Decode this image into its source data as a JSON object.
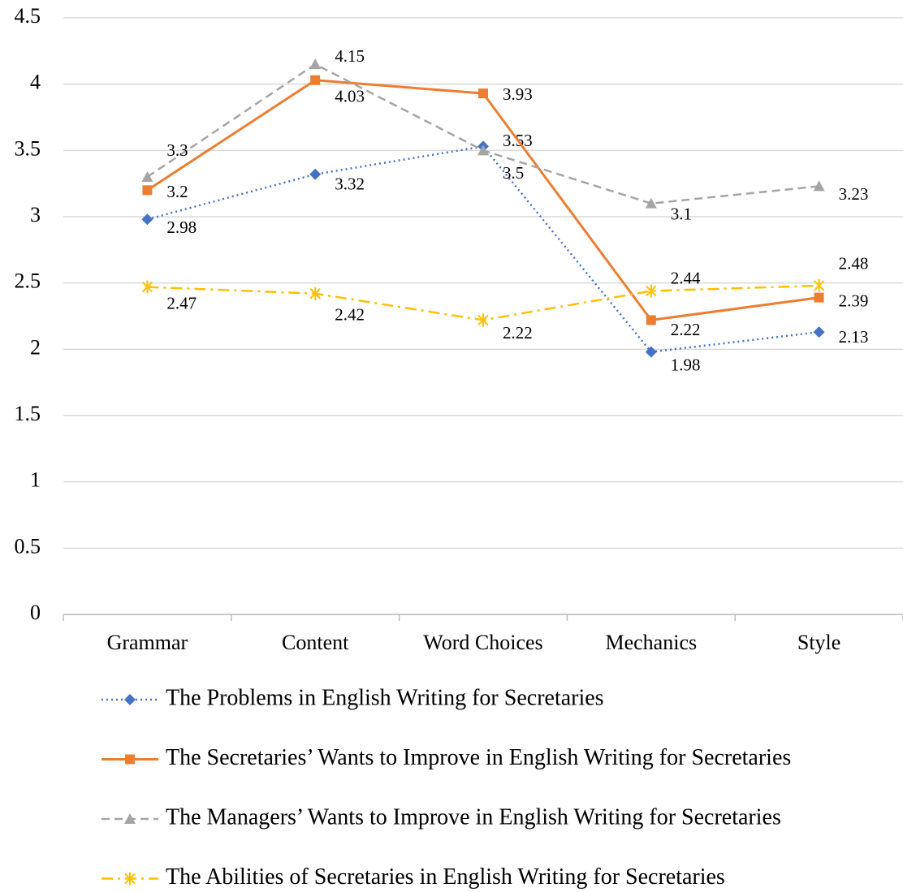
{
  "chart_data": {
    "type": "line",
    "categories": [
      "Grammar",
      "Content",
      "Word Choices",
      "Mechanics",
      "Style"
    ],
    "series": [
      {
        "name": "The Problems in English Writing for Secretaries",
        "color": "#4472c4",
        "values": [
          2.98,
          3.32,
          3.53,
          1.98,
          2.13
        ]
      },
      {
        "name": "The Secretaries’ Wants to Improve in English Writing for Secretaries",
        "color": "#ed7d31",
        "values": [
          3.2,
          4.03,
          3.93,
          2.22,
          2.39
        ]
      },
      {
        "name": "The Managers’ Wants to Improve in English Writing for Secretaries",
        "color": "#a5a5a5",
        "values": [
          3.3,
          4.15,
          3.5,
          3.1,
          3.23
        ]
      },
      {
        "name": "The Abilities of Secretaries in English Writing for Secretaries",
        "color": "#ffc000",
        "values": [
          2.47,
          2.42,
          2.22,
          2.44,
          2.48
        ]
      }
    ],
    "ylim": [
      0,
      4.5
    ],
    "yticks": [
      0,
      0.5,
      1,
      1.5,
      2,
      2.5,
      3,
      3.5,
      4,
      4.5
    ],
    "grid": true,
    "legend": "bottom"
  }
}
